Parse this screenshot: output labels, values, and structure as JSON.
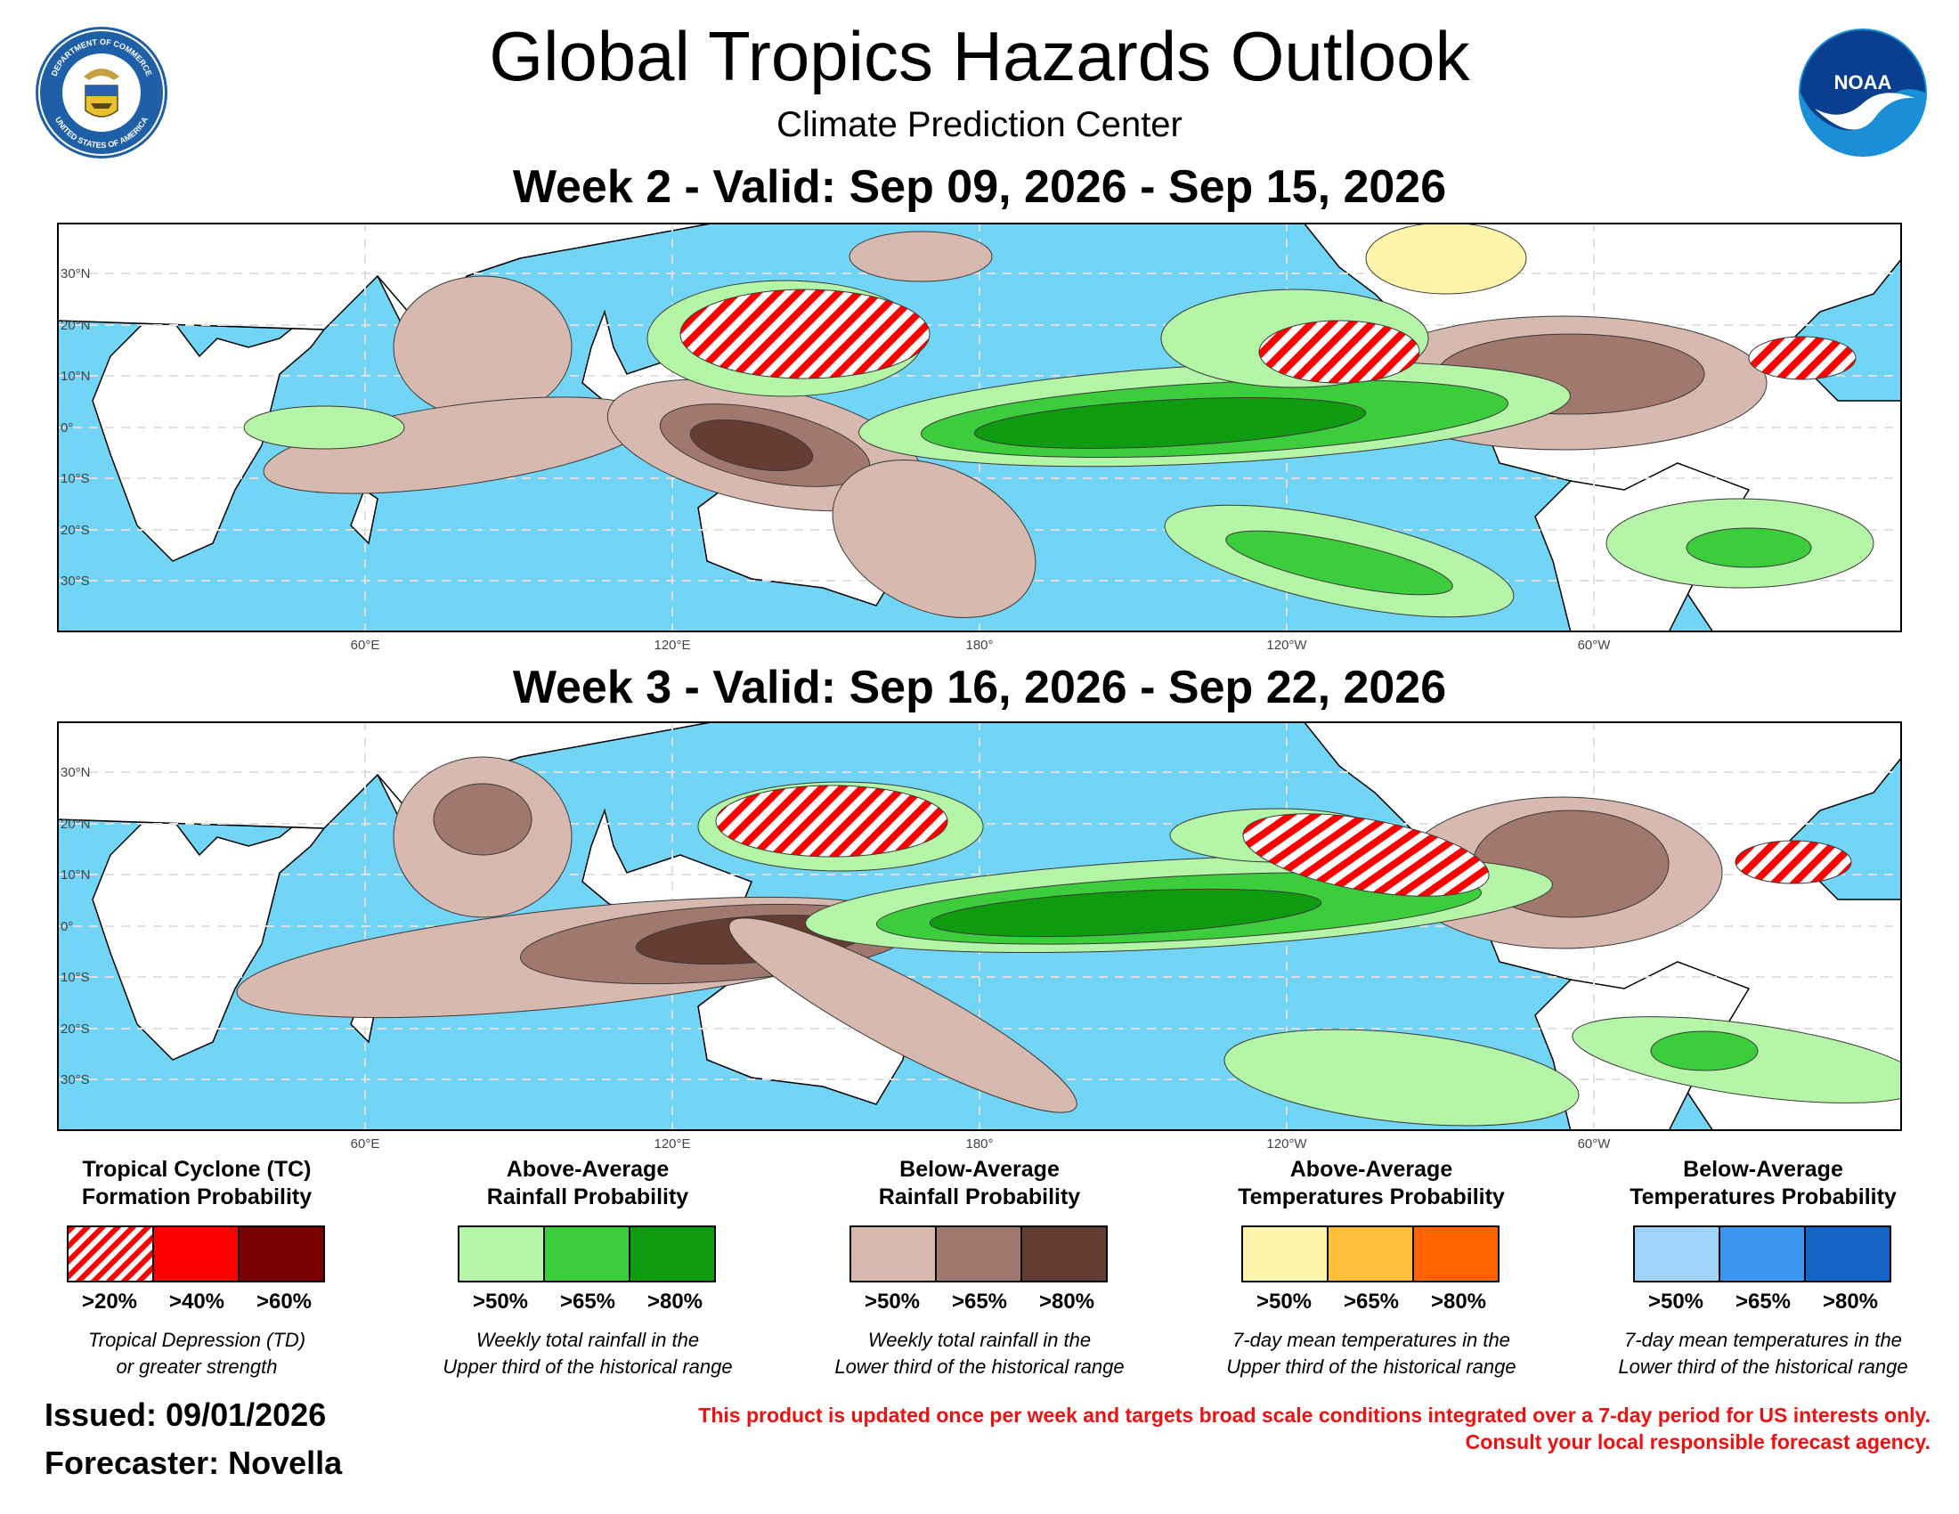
{
  "title": "Global Tropics Hazards Outlook",
  "subtitle": "Climate Prediction Center",
  "seal": {
    "top_text": "DEPARTMENT OF COMMERCE",
    "bottom_text": "UNITED STATES OF AMERICA"
  },
  "noaa_logo_text": "NOAA",
  "week2": {
    "title": "Week 2 - Valid: Sep 09, 2026 - Sep 15, 2026"
  },
  "week3": {
    "title": "Week 3 - Valid: Sep 16, 2026 - Sep 22, 2026"
  },
  "map_axes": {
    "lat_labels": [
      "30°N",
      "20°N",
      "10°N",
      "0°",
      "10°S",
      "20°S",
      "30°S"
    ],
    "lon_labels": [
      "60°E",
      "120°E",
      "180°",
      "120°W",
      "60°W"
    ]
  },
  "legend": [
    {
      "title_line1": "Tropical Cyclone (TC)",
      "title_line2": "Formation Probability",
      "levels": [
        ">20%",
        ">40%",
        ">60%"
      ],
      "colors": [
        "hatch-red",
        "#ff0000",
        "#780000"
      ],
      "desc_line1": "Tropical Depression (TD)",
      "desc_line2": "or greater strength"
    },
    {
      "title_line1": "Above-Average",
      "title_line2": "Rainfall Probability",
      "levels": [
        ">50%",
        ">65%",
        ">80%"
      ],
      "colors": [
        "#b4f5a8",
        "#3ccd3c",
        "#0f9b0f"
      ],
      "desc_line1": "Weekly total rainfall in the",
      "desc_line2": "Upper third of the historical range"
    },
    {
      "title_line1": "Below-Average",
      "title_line2": "Rainfall Probability",
      "levels": [
        ">50%",
        ">65%",
        ">80%"
      ],
      "colors": [
        "#d7b9af",
        "#a0786e",
        "#643c32"
      ],
      "desc_line1": "Weekly total rainfall in the",
      "desc_line2": "Lower third of the historical range"
    },
    {
      "title_line1": "Above-Average",
      "title_line2": "Temperatures Probability",
      "levels": [
        ">50%",
        ">65%",
        ">80%"
      ],
      "colors": [
        "#fff5aa",
        "#ffbe3c",
        "#ff6400"
      ],
      "desc_line1": "7-day mean temperatures in the",
      "desc_line2": "Upper third of the historical range"
    },
    {
      "title_line1": "Below-Average",
      "title_line2": "Temperatures Probability",
      "levels": [
        ">50%",
        ">65%",
        ">80%"
      ],
      "colors": [
        "#a0d2fa",
        "#3c96f0",
        "#1464c8"
      ],
      "desc_line1": "7-day mean temperatures in the",
      "desc_line2": "Lower third of the historical range"
    }
  ],
  "issued": "Issued: 09/01/2026",
  "forecaster": "Forecaster: Novella",
  "disclaimer_line1": "This product is updated once per week and targets broad scale conditions integrated over a 7-day period for US interests only.",
  "disclaimer_line2": "Consult your local responsible forecast agency."
}
